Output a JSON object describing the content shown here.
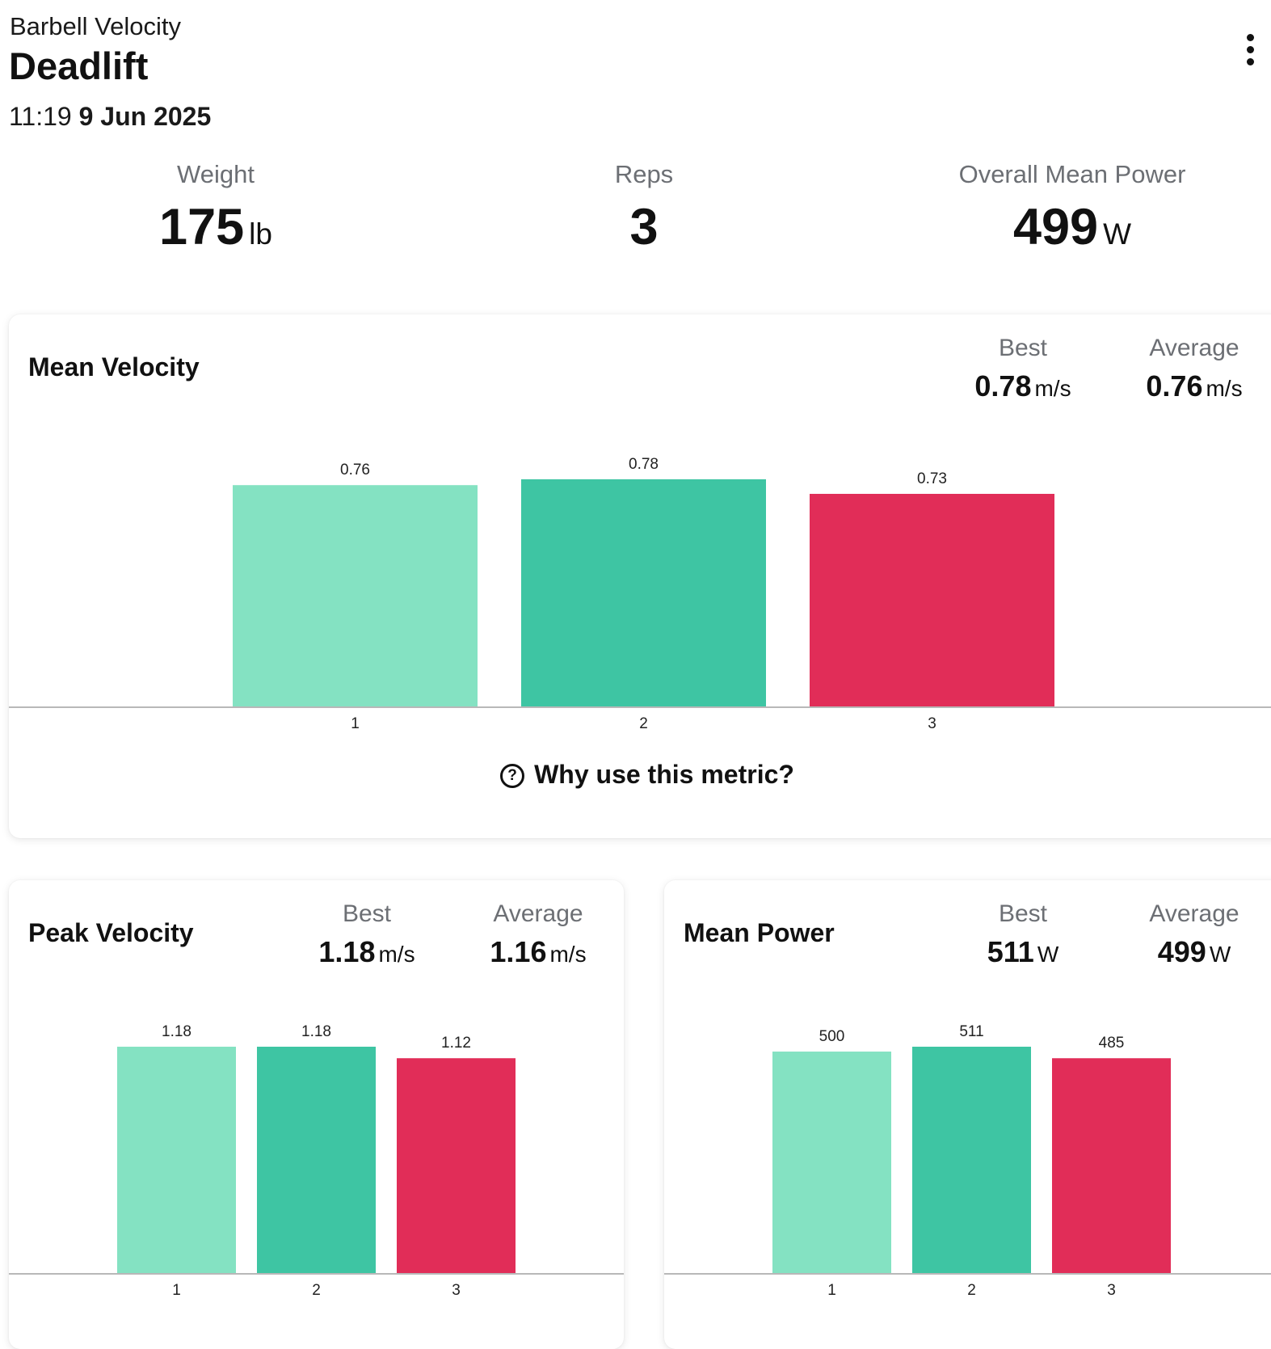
{
  "header": {
    "app_title": "Barbell Velocity",
    "exercise": "Deadlift",
    "time": "11:19",
    "date": "9 Jun 2025",
    "menu_icon": "more-vertical-icon"
  },
  "summary": {
    "weight": {
      "label": "Weight",
      "value": "175",
      "unit": "lb"
    },
    "reps": {
      "label": "Reps",
      "value": "3",
      "unit": ""
    },
    "power": {
      "label": "Overall Mean Power",
      "value": "499",
      "unit": "W"
    }
  },
  "cards": {
    "mean_velocity": {
      "title": "Mean Velocity",
      "best_label": "Best",
      "best_value": "0.78",
      "best_unit": "m/s",
      "avg_label": "Average",
      "avg_value": "0.76",
      "avg_unit": "m/s",
      "why_label": "Why use this metric?",
      "why_icon": "help-circle-icon"
    },
    "peak_velocity": {
      "title": "Peak Velocity",
      "best_label": "Best",
      "best_value": "1.18",
      "best_unit": "m/s",
      "avg_label": "Average",
      "avg_value": "1.16",
      "avg_unit": "m/s"
    },
    "mean_power": {
      "title": "Mean Power",
      "best_label": "Best",
      "best_value": "511",
      "best_unit": "W",
      "avg_label": "Average",
      "avg_value": "499",
      "avg_unit": "W"
    }
  },
  "colors": {
    "rep_1": "#84e2c2",
    "rep_2": "#3ec5a3",
    "rep_3": "#e12d58",
    "axis": "#b8b8b8"
  },
  "chart_data": [
    {
      "type": "bar",
      "title": "Mean Velocity",
      "categories": [
        "1",
        "2",
        "3"
      ],
      "values": [
        0.76,
        0.78,
        0.73
      ],
      "data_labels": [
        "0.76",
        "0.78",
        "0.73"
      ],
      "bar_colors": [
        "#84e2c2",
        "#3ec5a3",
        "#e12d58"
      ],
      "ylim": [
        0,
        0.78
      ],
      "grid": false
    },
    {
      "type": "bar",
      "title": "Peak Velocity",
      "categories": [
        "1",
        "2",
        "3"
      ],
      "values": [
        1.18,
        1.18,
        1.12
      ],
      "data_labels": [
        "1.18",
        "1.18",
        "1.12"
      ],
      "bar_colors": [
        "#84e2c2",
        "#3ec5a3",
        "#e12d58"
      ],
      "ylim": [
        0,
        1.18
      ],
      "grid": false
    },
    {
      "type": "bar",
      "title": "Mean Power",
      "categories": [
        "1",
        "2",
        "3"
      ],
      "values": [
        500,
        511,
        485
      ],
      "data_labels": [
        "500",
        "511",
        "485"
      ],
      "bar_colors": [
        "#84e2c2",
        "#3ec5a3",
        "#e12d58"
      ],
      "ylim": [
        0,
        511
      ],
      "grid": false
    }
  ]
}
